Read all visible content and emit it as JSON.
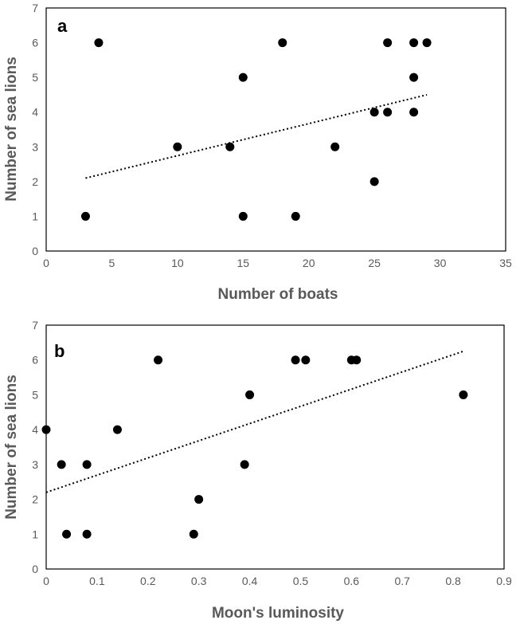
{
  "chart_data": [
    {
      "type": "scatter",
      "panel_label": "a",
      "xlabel": "Number of boats",
      "ylabel": "Number of sea lions",
      "xlim": [
        0,
        35
      ],
      "ylim": [
        0,
        7
      ],
      "xticks": [
        "0",
        "5",
        "10",
        "15",
        "20",
        "25",
        "30",
        "35"
      ],
      "yticks": [
        "0",
        "1",
        "2",
        "3",
        "4",
        "5",
        "6",
        "7"
      ],
      "grid": false,
      "points": [
        {
          "x": 3,
          "y": 1
        },
        {
          "x": 4,
          "y": 6
        },
        {
          "x": 10,
          "y": 3
        },
        {
          "x": 14,
          "y": 3
        },
        {
          "x": 15,
          "y": 5
        },
        {
          "x": 15,
          "y": 1
        },
        {
          "x": 18,
          "y": 6
        },
        {
          "x": 19,
          "y": 1
        },
        {
          "x": 22,
          "y": 3
        },
        {
          "x": 25,
          "y": 4
        },
        {
          "x": 25,
          "y": 2
        },
        {
          "x": 26,
          "y": 6
        },
        {
          "x": 26,
          "y": 4
        },
        {
          "x": 28,
          "y": 6
        },
        {
          "x": 28,
          "y": 5
        },
        {
          "x": 28,
          "y": 4
        },
        {
          "x": 29,
          "y": 6
        }
      ],
      "trendline": {
        "style": "dotted",
        "x": [
          3,
          29
        ],
        "y": [
          2.1,
          4.5
        ]
      },
      "colors": {
        "points": "#000000",
        "trendline": "#000000",
        "axis": "#000000"
      }
    },
    {
      "type": "scatter",
      "panel_label": "b",
      "xlabel": "Moon's luminosity",
      "ylabel": "Number of sea lions",
      "xlim": [
        0,
        0.9
      ],
      "ylim": [
        0,
        7
      ],
      "xticks": [
        "0",
        "0.1",
        "0.2",
        "0.3",
        "0.4",
        "0.5",
        "0.6",
        "0.7",
        "0.8",
        "0.9"
      ],
      "yticks": [
        "0",
        "1",
        "2",
        "3",
        "4",
        "5",
        "6",
        "7"
      ],
      "grid": false,
      "points": [
        {
          "x": 0.0,
          "y": 4
        },
        {
          "x": 0.03,
          "y": 3
        },
        {
          "x": 0.04,
          "y": 1
        },
        {
          "x": 0.08,
          "y": 3
        },
        {
          "x": 0.08,
          "y": 1
        },
        {
          "x": 0.14,
          "y": 4
        },
        {
          "x": 0.22,
          "y": 6
        },
        {
          "x": 0.29,
          "y": 1
        },
        {
          "x": 0.3,
          "y": 2
        },
        {
          "x": 0.39,
          "y": 3
        },
        {
          "x": 0.4,
          "y": 5
        },
        {
          "x": 0.49,
          "y": 6
        },
        {
          "x": 0.51,
          "y": 6
        },
        {
          "x": 0.6,
          "y": 6
        },
        {
          "x": 0.61,
          "y": 6
        },
        {
          "x": 0.82,
          "y": 5
        }
      ],
      "trendline": {
        "style": "dotted",
        "x": [
          0,
          0.82
        ],
        "y": [
          2.2,
          6.25
        ]
      },
      "colors": {
        "points": "#000000",
        "trendline": "#000000",
        "axis": "#000000"
      }
    }
  ]
}
